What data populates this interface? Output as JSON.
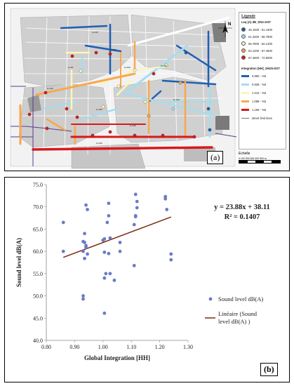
{
  "map": {
    "label": "(a)",
    "legend_title": "Légende",
    "north_label": "N",
    "sound_heading": "Leq (A) dB_Dhm EST",
    "sound_classes": [
      {
        "label": "46.1000 - 51.4400",
        "color": "#2b5aa8"
      },
      {
        "label": "51.4400 - 56.7800",
        "color": "#a6dcef"
      },
      {
        "label": "56.7800 - 62.1200",
        "color": "#fbf6b5"
      },
      {
        "label": "62.1200 - 67.4600",
        "color": "#f7a84e"
      },
      {
        "label": "67.4600 - 72.8000",
        "color": "#d7191c"
      }
    ],
    "integration_heading": "Integration [HH]_ZHUN EST",
    "integration_classes": [
      {
        "label": "0.860 - %5",
        "color": "#1f5fb4"
      },
      {
        "label": "0.936 - %5",
        "color": "#a6dcef"
      },
      {
        "label": "1.012 - %5",
        "color": "#fbf6b5"
      },
      {
        "label": "1.088 - %5",
        "color": "#f7a84e"
      },
      {
        "label": "1.165 - %5",
        "color": "#d7191c"
      }
    ],
    "street_limit_label": "street limit lines",
    "scale_title": "Echelle",
    "scale_numbers": "0   100  200  300  400  500 m"
  },
  "chart_data": {
    "type": "scatter",
    "panel_label": "(b)",
    "xlabel": "Global Integration [HH]",
    "ylabel": "Sound level dB(A)",
    "xlim": [
      0.8,
      1.3
    ],
    "ylim": [
      40,
      75
    ],
    "xticks": [
      "0.80",
      "0.90",
      "1.00",
      "1.10",
      "1.20",
      "1.30"
    ],
    "yticks": [
      "40.0",
      "45.0",
      "50.0",
      "55.0",
      "60.0",
      "65.0",
      "70.0",
      "75.0"
    ],
    "equation": "y = 23.88x + 38.11",
    "r_squared": "R² = 0.1407",
    "point_color": "#6a7bc4",
    "trend_color": "#7a2a10",
    "legend": [
      {
        "label": "Sound level dB(A)",
        "kind": "point"
      },
      {
        "label": "Linéaire (Sound level dB(A) )",
        "kind": "line"
      }
    ],
    "trend": {
      "slope": 23.88,
      "intercept": 38.11,
      "x_range": [
        0.86,
        1.24
      ]
    },
    "series": [
      {
        "name": "Sound level dB(A)",
        "points": [
          [
            0.86,
            66.5
          ],
          [
            0.86,
            60.0
          ],
          [
            0.93,
            62.2
          ],
          [
            0.93,
            50.0
          ],
          [
            0.93,
            49.3
          ],
          [
            0.93,
            60.0
          ],
          [
            0.935,
            62.0
          ],
          [
            0.935,
            64.0
          ],
          [
            0.935,
            58.4
          ],
          [
            0.94,
            61.3
          ],
          [
            0.94,
            60.9
          ],
          [
            0.94,
            70.4
          ],
          [
            0.945,
            69.4
          ],
          [
            0.945,
            59.4
          ],
          [
            1.0,
            62.5
          ],
          [
            1.005,
            62.8
          ],
          [
            1.005,
            59.8
          ],
          [
            1.005,
            54.0
          ],
          [
            1.005,
            46.1
          ],
          [
            1.01,
            55.0
          ],
          [
            1.015,
            66.5
          ],
          [
            1.02,
            59.5
          ],
          [
            1.02,
            70.8
          ],
          [
            1.02,
            68.0
          ],
          [
            1.025,
            63.0
          ],
          [
            1.025,
            55.0
          ],
          [
            1.04,
            53.5
          ],
          [
            1.06,
            60.0
          ],
          [
            1.06,
            62.0
          ],
          [
            1.11,
            66.0
          ],
          [
            1.11,
            56.8
          ],
          [
            1.115,
            68.0
          ],
          [
            1.115,
            67.8
          ],
          [
            1.115,
            72.8
          ],
          [
            1.12,
            71.2
          ],
          [
            1.12,
            69.8
          ],
          [
            1.22,
            72.3
          ],
          [
            1.22,
            71.8
          ],
          [
            1.225,
            69.4
          ],
          [
            1.24,
            59.4
          ],
          [
            1.24,
            58.1
          ]
        ]
      }
    ]
  }
}
